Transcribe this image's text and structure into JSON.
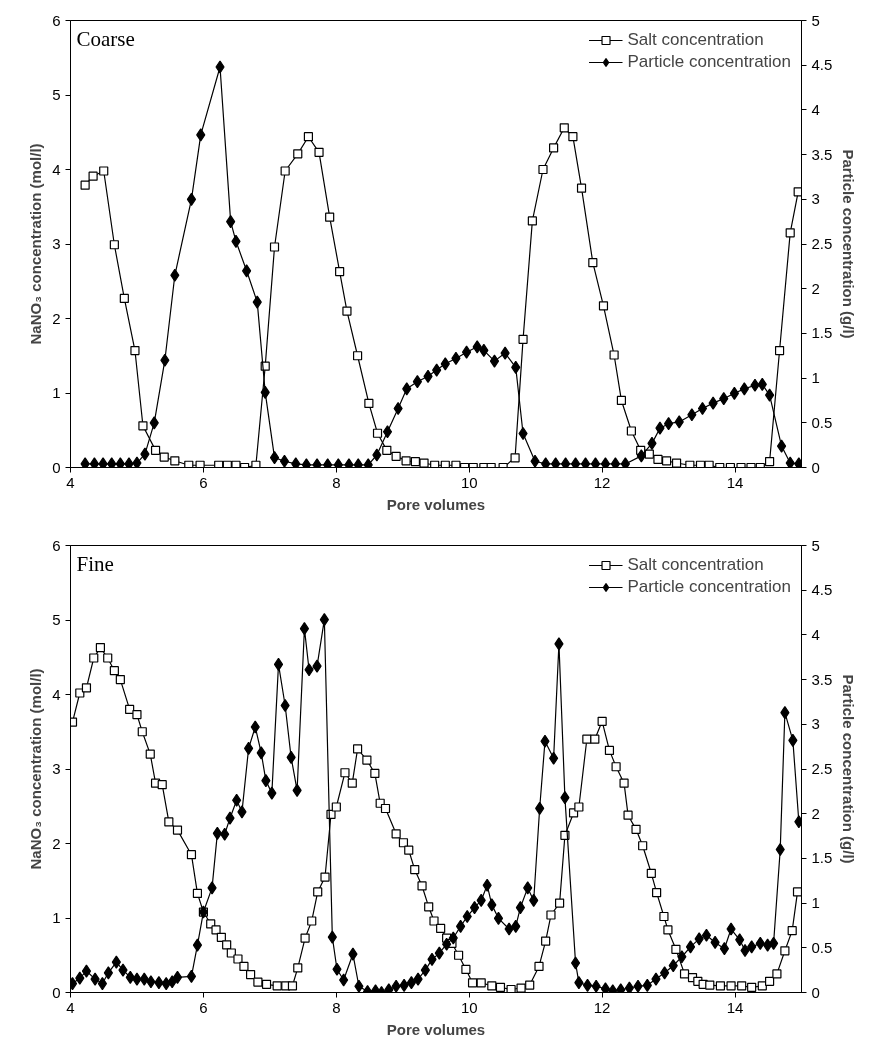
{
  "chart_data": [
    {
      "type": "line",
      "title": "Coarse",
      "xlabel": "Pore volumes",
      "ylabel": "NaNO₃ concentration (mol/l)",
      "y2label": "Particle concentration (g/l)",
      "xlim": [
        4,
        15
      ],
      "xticks": [
        4,
        6,
        8,
        10,
        12,
        14
      ],
      "ylim": [
        0,
        6
      ],
      "yticks": [
        0,
        1,
        2,
        3,
        4,
        5,
        6
      ],
      "y2lim": [
        0,
        5
      ],
      "y2ticks": [
        0,
        0.5,
        1,
        1.5,
        2,
        2.5,
        3,
        3.5,
        4,
        4.5,
        5
      ],
      "grid": false,
      "legend": "top right",
      "series": [
        {
          "name": "Salt concentration",
          "color": "#000000",
          "marker": "square",
          "x": [
            4.22,
            4.34,
            4.5,
            4.66,
            4.81,
            4.97,
            5.09,
            5.28,
            5.41,
            5.57,
            5.78,
            5.95,
            6.23,
            6.36,
            6.49,
            6.62,
            6.79,
            6.93,
            7.07,
            7.23,
            7.42,
            7.58,
            7.74,
            7.9,
            8.05,
            8.16,
            8.32,
            8.49,
            8.62,
            8.76,
            8.9,
            9.05,
            9.19,
            9.32,
            9.48,
            9.64,
            9.8,
            9.93,
            10.06,
            10.22,
            10.33,
            10.51,
            10.69,
            10.81,
            10.95,
            11.11,
            11.27,
            11.43,
            11.56,
            11.69,
            11.86,
            12.02,
            12.18,
            12.29,
            12.44,
            12.58,
            12.71,
            12.84,
            12.97,
            13.12,
            13.32,
            13.48,
            13.61,
            13.77,
            13.93,
            14.09,
            14.24,
            14.38,
            14.52,
            14.67,
            14.83,
            14.95
          ],
          "values": [
            3.79,
            3.91,
            3.98,
            2.99,
            2.27,
            1.57,
            0.56,
            0.23,
            0.14,
            0.09,
            0.03,
            0.03,
            0.03,
            0.03,
            0.03,
            0.0,
            0.03,
            1.36,
            2.96,
            3.98,
            4.21,
            4.44,
            4.23,
            3.36,
            2.63,
            2.1,
            1.5,
            0.86,
            0.46,
            0.23,
            0.15,
            0.09,
            0.08,
            0.06,
            0.03,
            0.03,
            0.03,
            0.0,
            0.0,
            0.0,
            0.0,
            0.0,
            0.13,
            1.72,
            3.31,
            4.0,
            4.29,
            4.56,
            4.44,
            3.75,
            2.75,
            2.17,
            1.51,
            0.9,
            0.49,
            0.23,
            0.18,
            0.11,
            0.09,
            0.06,
            0.03,
            0.03,
            0.03,
            0.0,
            0.0,
            0.0,
            0.0,
            0.0,
            0.08,
            1.57,
            3.15,
            3.7
          ]
        },
        {
          "name": "Particle concentration",
          "color": "#000000",
          "marker": "diamond",
          "axis": "y2",
          "x": [
            4.22,
            4.36,
            4.49,
            4.62,
            4.75,
            4.88,
            5.0,
            5.12,
            5.26,
            5.42,
            5.57,
            5.82,
            5.96,
            6.25,
            6.41,
            6.49,
            6.65,
            6.81,
            6.93,
            7.07,
            7.22,
            7.39,
            7.55,
            7.71,
            7.87,
            8.03,
            8.19,
            8.33,
            8.48,
            8.61,
            8.77,
            8.93,
            9.06,
            9.22,
            9.38,
            9.51,
            9.64,
            9.8,
            9.96,
            10.12,
            10.22,
            10.38,
            10.54,
            10.7,
            10.81,
            10.99,
            11.15,
            11.3,
            11.45,
            11.6,
            11.75,
            11.9,
            12.05,
            12.2,
            12.35,
            12.59,
            12.75,
            12.87,
            13.0,
            13.16,
            13.35,
            13.51,
            13.67,
            13.83,
            13.99,
            14.14,
            14.3,
            14.41,
            14.52,
            14.7,
            14.83,
            14.96
          ],
          "values": [
            0.04,
            0.04,
            0.04,
            0.04,
            0.04,
            0.04,
            0.05,
            0.15,
            0.5,
            1.2,
            2.15,
            3.0,
            3.72,
            4.48,
            2.75,
            2.53,
            2.2,
            1.85,
            0.84,
            0.11,
            0.07,
            0.04,
            0.03,
            0.03,
            0.03,
            0.03,
            0.03,
            0.03,
            0.03,
            0.14,
            0.4,
            0.66,
            0.88,
            0.96,
            1.02,
            1.09,
            1.16,
            1.22,
            1.29,
            1.35,
            1.31,
            1.19,
            1.28,
            1.12,
            0.38,
            0.07,
            0.04,
            0.04,
            0.04,
            0.04,
            0.04,
            0.04,
            0.04,
            0.04,
            0.04,
            0.13,
            0.27,
            0.44,
            0.49,
            0.51,
            0.59,
            0.66,
            0.72,
            0.77,
            0.83,
            0.88,
            0.92,
            0.93,
            0.81,
            0.24,
            0.05,
            0.04
          ]
        }
      ]
    },
    {
      "type": "line",
      "title": "Fine",
      "xlabel": "Pore volumes",
      "ylabel": "NaNO₃ concentration (mol/l)",
      "y2label": "Particle concentration (g/l)",
      "xlim": [
        4,
        15
      ],
      "xticks": [
        4,
        6,
        8,
        10,
        12,
        14
      ],
      "ylim": [
        0,
        6
      ],
      "yticks": [
        0,
        1,
        2,
        3,
        4,
        5,
        6
      ],
      "y2lim": [
        0,
        5
      ],
      "y2ticks": [
        0,
        0.5,
        1,
        1.5,
        2,
        2.5,
        3,
        3.5,
        4,
        4.5,
        5
      ],
      "grid": false,
      "legend": "top right",
      "series": [
        {
          "name": "Salt concentration",
          "color": "#000000",
          "marker": "square",
          "x": [
            4.03,
            4.14,
            4.24,
            4.35,
            4.45,
            4.56,
            4.66,
            4.75,
            4.89,
            5.0,
            5.08,
            5.2,
            5.28,
            5.38,
            5.48,
            5.61,
            5.82,
            5.91,
            6.0,
            6.11,
            6.19,
            6.27,
            6.35,
            6.42,
            6.52,
            6.61,
            6.71,
            6.82,
            6.95,
            7.11,
            7.24,
            7.34,
            7.42,
            7.53,
            7.63,
            7.72,
            7.83,
            7.92,
            8.0,
            8.13,
            8.24,
            8.32,
            8.46,
            8.58,
            8.66,
            8.74,
            8.9,
            9.01,
            9.09,
            9.18,
            9.29,
            9.39,
            9.47,
            9.57,
            9.66,
            9.74,
            9.84,
            9.95,
            10.05,
            10.18,
            10.34,
            10.47,
            10.63,
            10.78,
            10.91,
            11.05,
            11.15,
            11.23,
            11.36,
            11.44,
            11.57,
            11.65,
            11.77,
            11.89,
            12.0,
            12.11,
            12.21,
            12.33,
            12.39,
            12.51,
            12.61,
            12.74,
            12.82,
            12.93,
            12.99,
            13.11,
            13.24,
            13.36,
            13.44,
            13.52,
            13.62,
            13.78,
            13.94,
            14.1,
            14.25,
            14.41,
            14.52,
            14.63,
            14.75,
            14.86,
            14.94
          ],
          "values": [
            3.63,
            4.02,
            4.09,
            4.49,
            4.63,
            4.49,
            4.32,
            4.2,
            3.8,
            3.73,
            3.5,
            3.2,
            2.81,
            2.79,
            2.29,
            2.18,
            1.85,
            1.33,
            1.08,
            0.92,
            0.84,
            0.74,
            0.64,
            0.53,
            0.45,
            0.35,
            0.24,
            0.14,
            0.11,
            0.09,
            0.09,
            0.09,
            0.33,
            0.73,
            0.96,
            1.35,
            1.55,
            2.39,
            2.49,
            2.95,
            2.81,
            3.27,
            3.12,
            2.94,
            2.54,
            2.47,
            2.13,
            2.01,
            1.91,
            1.65,
            1.43,
            1.15,
            0.96,
            0.86,
            0.73,
            0.66,
            0.5,
            0.31,
            0.13,
            0.13,
            0.09,
            0.07,
            0.04,
            0.06,
            0.1,
            0.35,
            0.69,
            1.04,
            1.2,
            2.11,
            2.41,
            2.49,
            3.4,
            3.4,
            3.64,
            3.25,
            3.03,
            2.81,
            2.38,
            2.19,
            1.97,
            1.6,
            1.34,
            1.02,
            0.84,
            0.58,
            0.25,
            0.2,
            0.15,
            0.11,
            0.1,
            0.09,
            0.09,
            0.09,
            0.07,
            0.09,
            0.15,
            0.25,
            0.56,
            0.83,
            1.35
          ]
        },
        {
          "name": "Particle concentration",
          "color": "#000000",
          "marker": "diamond",
          "axis": "y2",
          "x": [
            4.03,
            4.14,
            4.24,
            4.37,
            4.48,
            4.57,
            4.69,
            4.79,
            4.9,
            5.0,
            5.11,
            5.21,
            5.33,
            5.44,
            5.53,
            5.61,
            5.82,
            5.91,
            6.0,
            6.13,
            6.21,
            6.32,
            6.4,
            6.5,
            6.58,
            6.68,
            6.78,
            6.87,
            6.94,
            7.03,
            7.13,
            7.23,
            7.32,
            7.41,
            7.52,
            7.59,
            7.71,
            7.82,
            7.94,
            8.01,
            8.11,
            8.25,
            8.34,
            8.47,
            8.59,
            8.68,
            8.79,
            8.9,
            9.02,
            9.13,
            9.23,
            9.34,
            9.44,
            9.55,
            9.66,
            9.76,
            9.87,
            9.97,
            10.08,
            10.18,
            10.27,
            10.34,
            10.44,
            10.6,
            10.7,
            10.77,
            10.88,
            10.97,
            11.06,
            11.14,
            11.27,
            11.35,
            11.44,
            11.6,
            11.65,
            11.78,
            11.91,
            12.05,
            12.16,
            12.28,
            12.41,
            12.54,
            12.68,
            12.81,
            12.94,
            13.07,
            13.2,
            13.33,
            13.46,
            13.57,
            13.7,
            13.84,
            13.94,
            14.07,
            14.15,
            14.25,
            14.38,
            14.49,
            14.58,
            14.68,
            14.75,
            14.87,
            14.96
          ],
          "values": [
            0.1,
            0.16,
            0.24,
            0.15,
            0.1,
            0.22,
            0.34,
            0.25,
            0.17,
            0.15,
            0.15,
            0.12,
            0.11,
            0.1,
            0.12,
            0.17,
            0.18,
            0.53,
            0.9,
            1.17,
            1.78,
            1.77,
            1.95,
            2.15,
            2.02,
            2.73,
            2.97,
            2.68,
            2.37,
            2.23,
            3.67,
            3.21,
            2.63,
            2.26,
            4.07,
            3.61,
            3.65,
            4.17,
            0.62,
            0.26,
            0.14,
            0.43,
            0.07,
            0.01,
            0.02,
            0.0,
            0.03,
            0.07,
            0.08,
            0.11,
            0.15,
            0.25,
            0.37,
            0.44,
            0.54,
            0.61,
            0.74,
            0.85,
            0.95,
            1.03,
            1.2,
            0.98,
            0.83,
            0.71,
            0.74,
            0.95,
            1.17,
            1.03,
            2.06,
            2.81,
            2.62,
            3.9,
            2.18,
            0.33,
            0.11,
            0.08,
            0.07,
            0.04,
            0.02,
            0.03,
            0.05,
            0.07,
            0.08,
            0.15,
            0.22,
            0.3,
            0.4,
            0.51,
            0.6,
            0.64,
            0.56,
            0.49,
            0.71,
            0.59,
            0.47,
            0.51,
            0.55,
            0.53,
            0.55,
            1.6,
            3.13,
            2.82,
            1.91
          ]
        }
      ]
    }
  ]
}
